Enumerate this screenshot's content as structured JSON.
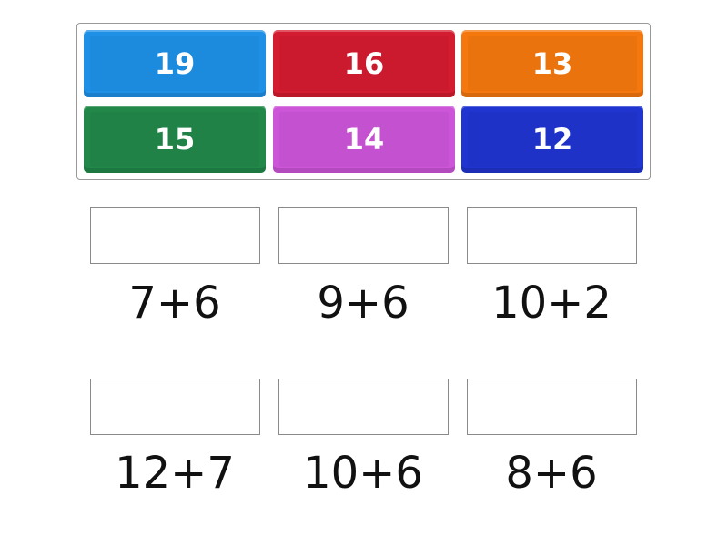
{
  "tiles": [
    {
      "label": "19",
      "color": "#1e90e6"
    },
    {
      "label": "16",
      "color": "#d41c30"
    },
    {
      "label": "13",
      "color": "#f5780e"
    },
    {
      "label": "15",
      "color": "#22884a"
    },
    {
      "label": "14",
      "color": "#cc55d8"
    },
    {
      "label": "12",
      "color": "#2035d0"
    }
  ],
  "questions": [
    {
      "label": "7+6"
    },
    {
      "label": "9+6"
    },
    {
      "label": "10+2"
    },
    {
      "label": "12+7"
    },
    {
      "label": "10+6"
    },
    {
      "label": "8+6"
    }
  ]
}
